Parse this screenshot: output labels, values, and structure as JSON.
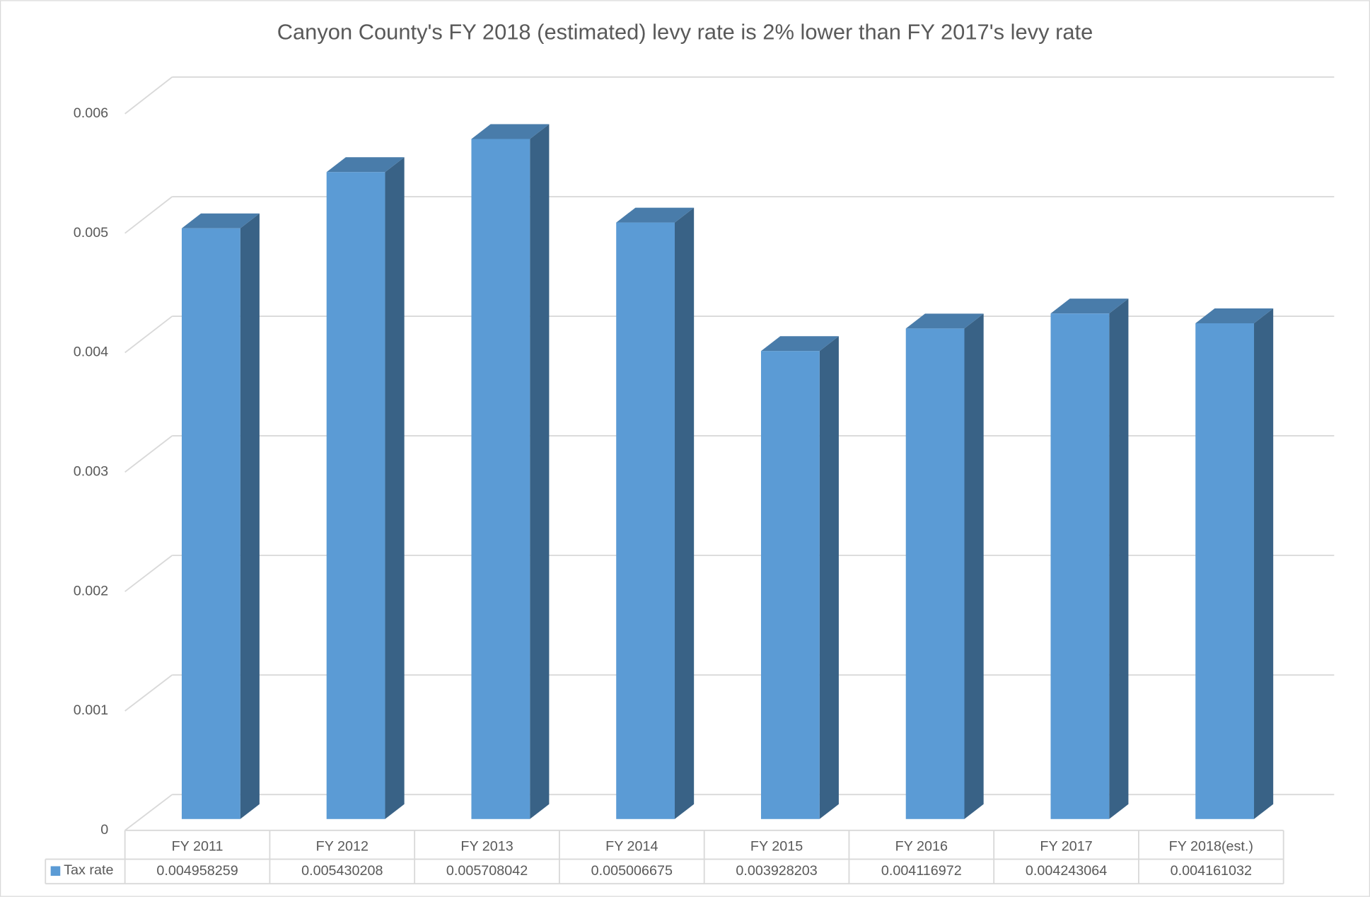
{
  "chart_data": {
    "type": "bar3d",
    "title": "Canyon County's FY 2018 (estimated) levy rate is 2% lower than FY 2017's levy rate",
    "categories": [
      "FY 2011",
      "FY 2012",
      "FY 2013",
      "FY 2014",
      "FY 2015",
      "FY 2016",
      "FY 2017",
      "FY 2018(est.)"
    ],
    "series": [
      {
        "name": "Tax rate",
        "color": "#5b9bd5",
        "values": [
          0.004958259,
          0.005430208,
          0.005708042,
          0.005006675,
          0.003928203,
          0.004116972,
          0.004243064,
          0.004161032
        ]
      }
    ],
    "ylim": [
      0,
      0.006
    ],
    "yticks": [
      0,
      0.001,
      0.002,
      0.003,
      0.004,
      0.005,
      0.006
    ],
    "grid": true,
    "data_table": true
  }
}
